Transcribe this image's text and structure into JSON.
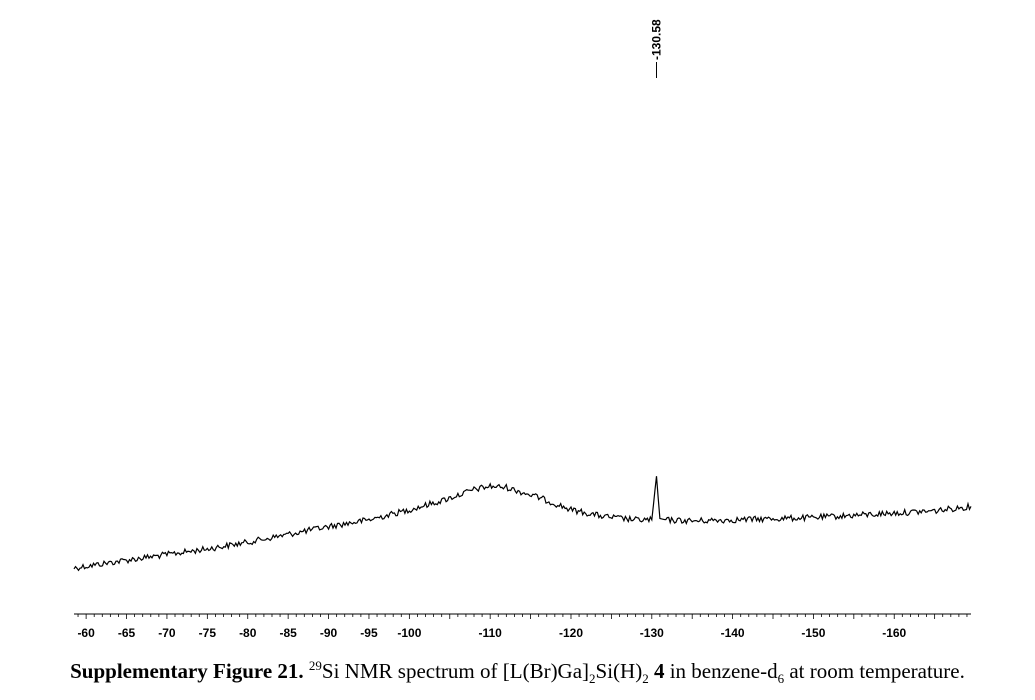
{
  "chart_data": {
    "type": "line",
    "title": "",
    "xlabel": "",
    "ylabel": "",
    "x_reversed": true,
    "xlim": [
      -58.5,
      -169.5
    ],
    "grid": false,
    "legend": "none",
    "tick_labels": [
      "-60",
      "-65",
      "-70",
      "-75",
      "-80",
      "-85",
      "-90",
      "-95",
      "-100",
      "-110",
      "-120",
      "-130",
      "-140",
      "-150",
      "-160"
    ],
    "minor_tick_step": 1,
    "series": [
      {
        "x": [
          -58.5,
          -65,
          -70,
          -75,
          -80,
          -85,
          -90,
          -95,
          -100,
          -104,
          -108,
          -110,
          -112,
          -116,
          -120,
          -124,
          -128,
          -130,
          -130.58,
          -131,
          -135,
          -140,
          -145,
          -150,
          -155,
          -160,
          -165,
          -169.5
        ],
        "y": [
          0.0,
          0.07,
          0.12,
          0.17,
          0.23,
          0.3,
          0.37,
          0.43,
          0.52,
          0.6,
          0.7,
          0.73,
          0.72,
          0.63,
          0.52,
          0.46,
          0.43,
          0.43,
          0.82,
          0.43,
          0.42,
          0.43,
          0.44,
          0.45,
          0.47,
          0.49,
          0.51,
          0.55
        ]
      }
    ],
    "peak_labels": [
      {
        "x": -130.58,
        "text": "-130.58"
      }
    ]
  },
  "caption": {
    "label": "Supplementary Figure 21.",
    "superscript": "29",
    "text_a": "Si NMR spectrum of [L(Br)Ga]",
    "sub_a": "2",
    "text_b": "Si(H)",
    "sub_b": "2",
    "compound": "4",
    "text_c": " in benzene-d",
    "sub_c": "6",
    "text_d": " at room temperature."
  }
}
